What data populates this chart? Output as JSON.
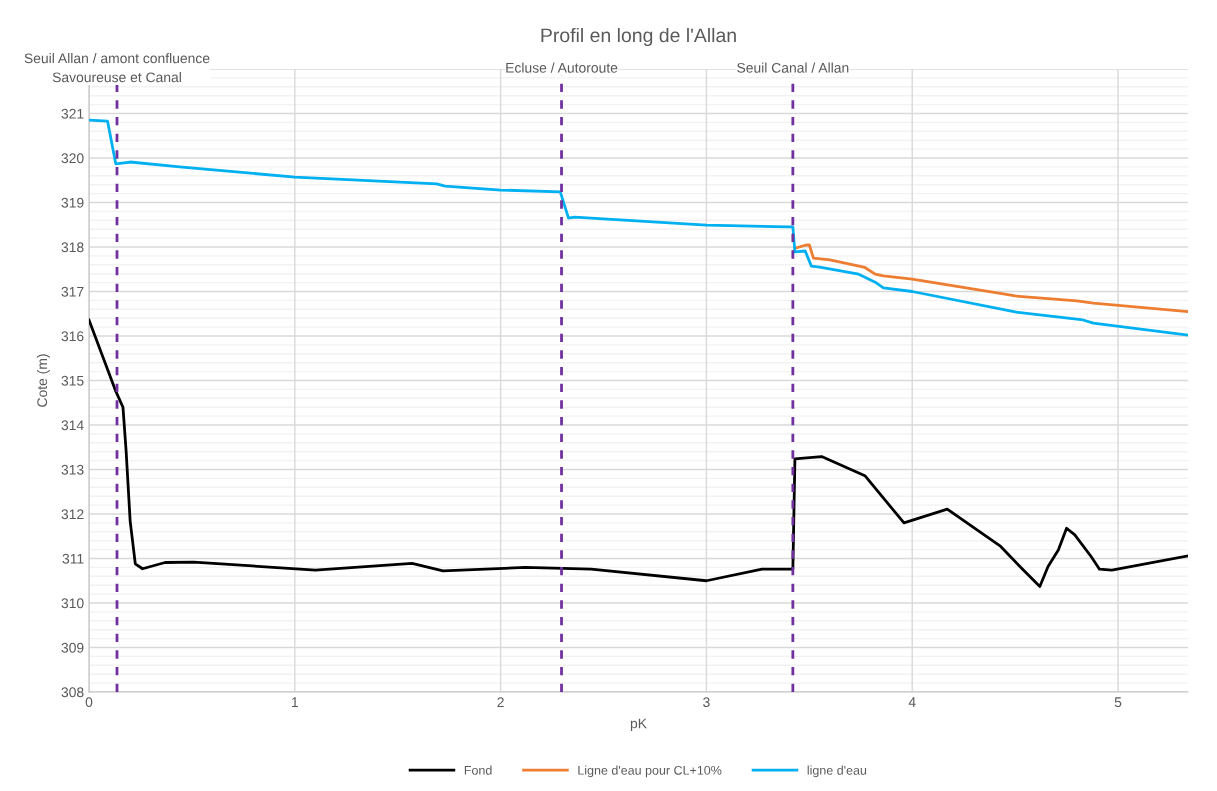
{
  "chart_data": {
    "type": "line",
    "title": "Profil en long de l'Allan",
    "xlabel": "pK",
    "ylabel": "Cote (m)",
    "xlim": [
      0,
      5.34
    ],
    "xticks": [
      0,
      1,
      2,
      3,
      4,
      5
    ],
    "ylim": [
      308,
      322
    ],
    "yticks": [
      308,
      309,
      310,
      311,
      312,
      313,
      314,
      315,
      316,
      317,
      318,
      319,
      320,
      321,
      322
    ],
    "grid": true,
    "legend": "bottom",
    "line_style": "solid",
    "marker": "none",
    "ref_lines": [
      {
        "axis": "x",
        "value": 0.136,
        "label": "Seuil Allan / amont confluence\nSavoureuse et Canal",
        "color": "#7030a0",
        "line_style": "dashed"
      },
      {
        "axis": "x",
        "value": 2.296,
        "label": "Ecluse / Autoroute",
        "color": "#7030a0",
        "line_style": "dashed"
      },
      {
        "axis": "x",
        "value": 3.42,
        "label": "Seuil Canal / Allan",
        "color": "#7030a0",
        "line_style": "dashed"
      }
    ],
    "series": [
      {
        "name": "Fond",
        "color": "#000000",
        "x": [
          0,
          0.13,
          0.165,
          0.18,
          0.2,
          0.225,
          0.26,
          0.37,
          0.51,
          1.1,
          1.57,
          1.72,
          2.12,
          2.44,
          3.0,
          3.27,
          3.42,
          3.43,
          3.56,
          3.77,
          3.96,
          4.17,
          4.43,
          4.54,
          4.62,
          4.66,
          4.71,
          4.75,
          4.79,
          4.87,
          4.91,
          4.97,
          5.34
        ],
        "values": [
          316.36,
          314.76,
          314.4,
          313.44,
          311.84,
          310.88,
          310.77,
          310.91,
          310.92,
          310.74,
          310.89,
          310.72,
          310.8,
          310.76,
          310.5,
          310.76,
          310.76,
          313.24,
          313.29,
          312.86,
          311.8,
          312.11,
          311.27,
          310.74,
          310.37,
          310.82,
          311.19,
          311.68,
          311.53,
          311.04,
          310.76,
          310.74,
          311.06
        ]
      },
      {
        "name": "Ligne d'eau pour CL+10%",
        "color": "#ed7d31",
        "x": [
          3.43,
          3.48,
          3.5,
          3.52,
          3.6,
          3.77,
          3.82,
          3.86,
          4.0,
          4.45,
          4.5,
          4.8,
          4.88,
          5.34
        ],
        "values": [
          317.97,
          318.04,
          318.05,
          317.75,
          317.71,
          317.54,
          317.39,
          317.35,
          317.28,
          316.94,
          316.9,
          316.79,
          316.74,
          316.55
        ]
      },
      {
        "name": "ligne d'eau",
        "color": "#00b0f0",
        "x": [
          0,
          0.09,
          0.13,
          0.2,
          0.44,
          1.0,
          1.69,
          1.73,
          2.0,
          2.29,
          2.33,
          2.36,
          3.0,
          3.4,
          3.42,
          3.43,
          3.48,
          3.51,
          3.55,
          3.74,
          3.82,
          3.86,
          4.0,
          4.5,
          4.83,
          4.88,
          5.34
        ],
        "values": [
          320.85,
          320.83,
          319.87,
          319.91,
          319.8,
          319.57,
          319.42,
          319.37,
          319.28,
          319.24,
          318.65,
          318.67,
          318.49,
          318.45,
          318.45,
          317.89,
          317.91,
          317.57,
          317.55,
          317.39,
          317.21,
          317.08,
          317.0,
          316.54,
          316.36,
          316.29,
          316.02
        ]
      }
    ]
  }
}
